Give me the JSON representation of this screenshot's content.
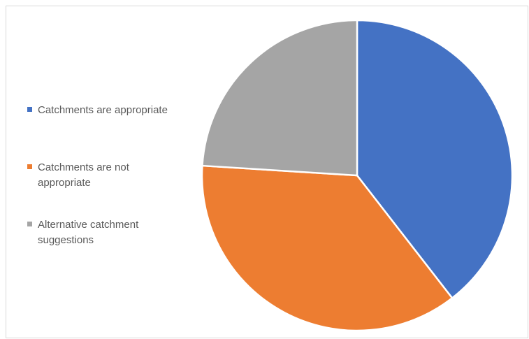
{
  "chart_data": {
    "type": "pie",
    "title": "",
    "legend_position": "left",
    "slices": [
      {
        "label": "Catchments are appropriate",
        "value": 39.5,
        "color": "#4472C4"
      },
      {
        "label": "Catchments are not appropriate",
        "value": 36.5,
        "color": "#ED7D31"
      },
      {
        "label": "Alternative catchment suggestions",
        "value": 24.0,
        "color": "#A5A5A5"
      }
    ]
  }
}
